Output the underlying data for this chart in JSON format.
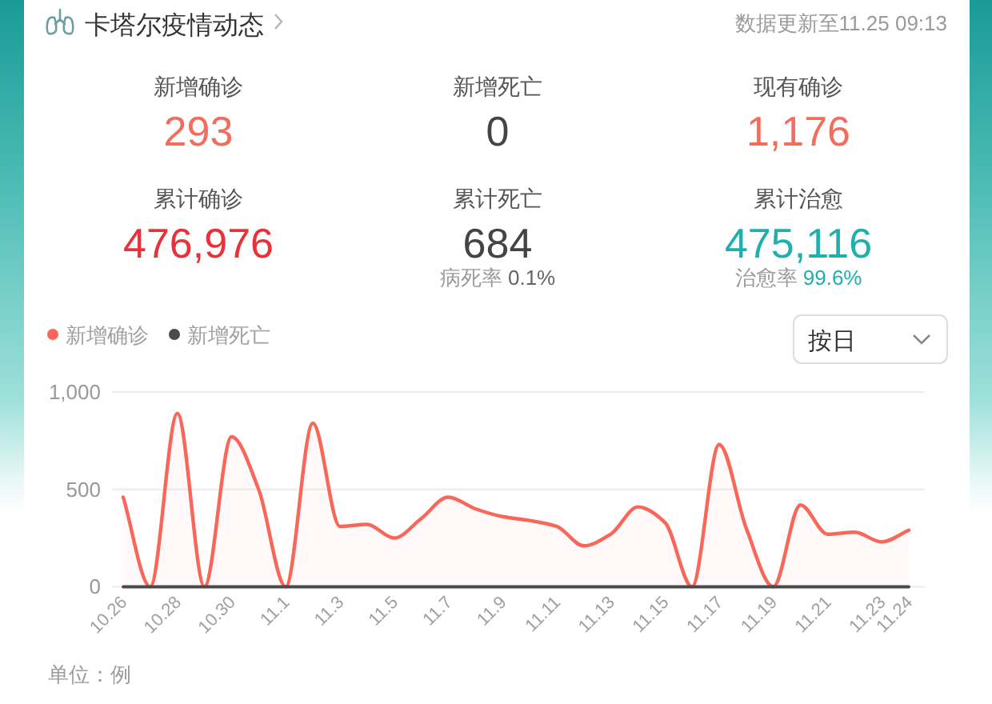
{
  "chart_data": [
    {
      "type": "other",
      "title": "卡塔尔疫情动态",
      "categories": [
        "新增确诊",
        "新增死亡",
        "现有确诊",
        "累计确诊",
        "累计死亡",
        "累计治愈"
      ],
      "value_labels": [
        "293",
        "0",
        "1,176",
        "476,976",
        "684",
        "475,116"
      ],
      "colors": [
        "#f26d5c",
        "#444444",
        "#f26d5c",
        "#e8323a",
        "#444444",
        "#1fb0ad"
      ],
      "annotations": [
        "数据更新至11.25 09:13",
        {
          "text": "病死率 0.1%",
          "x": "累计死亡"
        },
        {
          "text": "治愈率 99.6%",
          "x": "累计治愈"
        }
      ]
    },
    {
      "type": "line",
      "categories": [
        "10.26",
        null,
        "10.28",
        null,
        "10.30",
        null,
        "11.1",
        null,
        "11.3",
        null,
        "11.5",
        null,
        "11.7",
        null,
        "11.9",
        null,
        "11.11",
        null,
        "11.13",
        null,
        "11.15",
        null,
        "11.17",
        null,
        "11.19",
        null,
        "11.21",
        null,
        "11.23",
        "11.24"
      ],
      "series": [
        {
          "name": "新增确诊",
          "type": "area",
          "color": "#f8675a",
          "values": [
            460,
            0,
            890,
            0,
            770,
            500,
            0,
            840,
            310,
            320,
            250,
            350,
            460,
            400,
            360,
            340,
            310,
            210,
            270,
            410,
            330,
            0,
            730,
            300,
            0,
            420,
            270,
            280,
            230,
            290
          ]
        },
        {
          "name": "新增死亡",
          "type": "line",
          "color": "#4a4a4a",
          "values": [
            0,
            0,
            0,
            0,
            0,
            0,
            0,
            0,
            0,
            0,
            0,
            0,
            0,
            0,
            0,
            0,
            0,
            0,
            0,
            0,
            0,
            0,
            0,
            0,
            0,
            0,
            0,
            0,
            0,
            0
          ]
        }
      ],
      "ylim": [
        0,
        1000
      ],
      "yticks": [
        0,
        500,
        {
          "value": 1000,
          "label": "1,000"
        }
      ],
      "grid": "y",
      "legend": "top left",
      "marker": "none",
      "annotations": [
        "单位：例",
        "按日"
      ]
    }
  ]
}
